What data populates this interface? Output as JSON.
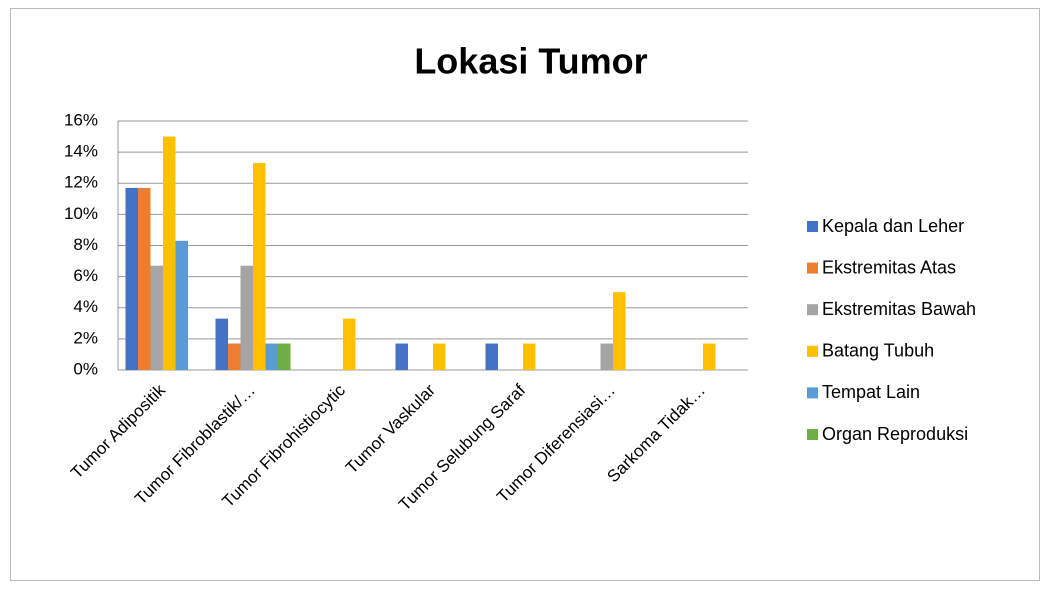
{
  "chart_data": {
    "type": "bar",
    "title": "Lokasi Tumor",
    "categories": [
      "Tumor Adipositik",
      "Tumor Fibroblastik/…",
      "Tumor Fibrohistiocytic",
      "Tumor Vaskular",
      "Tumor Selubung Saraf",
      "Tumor Diferensiasi…",
      "Sarkoma Tidak…"
    ],
    "series": [
      {
        "name": "Kepala dan Leher",
        "color": "#4472c4",
        "values": [
          11.7,
          3.3,
          0,
          1.7,
          1.7,
          0,
          0
        ]
      },
      {
        "name": "Ekstremitas Atas",
        "color": "#ed7d31",
        "values": [
          11.7,
          1.7,
          0,
          0,
          0,
          0,
          0
        ]
      },
      {
        "name": "Ekstremitas Bawah",
        "color": "#a5a5a5",
        "values": [
          6.7,
          6.7,
          0,
          0,
          0,
          1.7,
          0
        ]
      },
      {
        "name": "Batang Tubuh",
        "color": "#ffc000",
        "values": [
          15,
          13.3,
          3.3,
          1.7,
          1.7,
          5,
          1.7
        ]
      },
      {
        "name": "Tempat Lain",
        "color": "#5b9bd5",
        "values": [
          8.3,
          1.7,
          0,
          0,
          0,
          0,
          0
        ]
      },
      {
        "name": "Organ Reproduksi",
        "color": "#70ad47",
        "values": [
          0,
          1.7,
          0,
          0,
          0,
          0,
          0
        ]
      }
    ],
    "ylim": [
      0,
      16
    ],
    "yticks": [
      {
        "value": 0,
        "label": "0%"
      },
      {
        "value": 2,
        "label": "2%"
      },
      {
        "value": 4,
        "label": "4%"
      },
      {
        "value": 6,
        "label": "6%"
      },
      {
        "value": 8,
        "label": "8%"
      },
      {
        "value": 10,
        "label": "10%"
      },
      {
        "value": 12,
        "label": "12%"
      },
      {
        "value": 14,
        "label": "14%"
      },
      {
        "value": 16,
        "label": "16%"
      }
    ],
    "grid": true,
    "legend": "right"
  }
}
